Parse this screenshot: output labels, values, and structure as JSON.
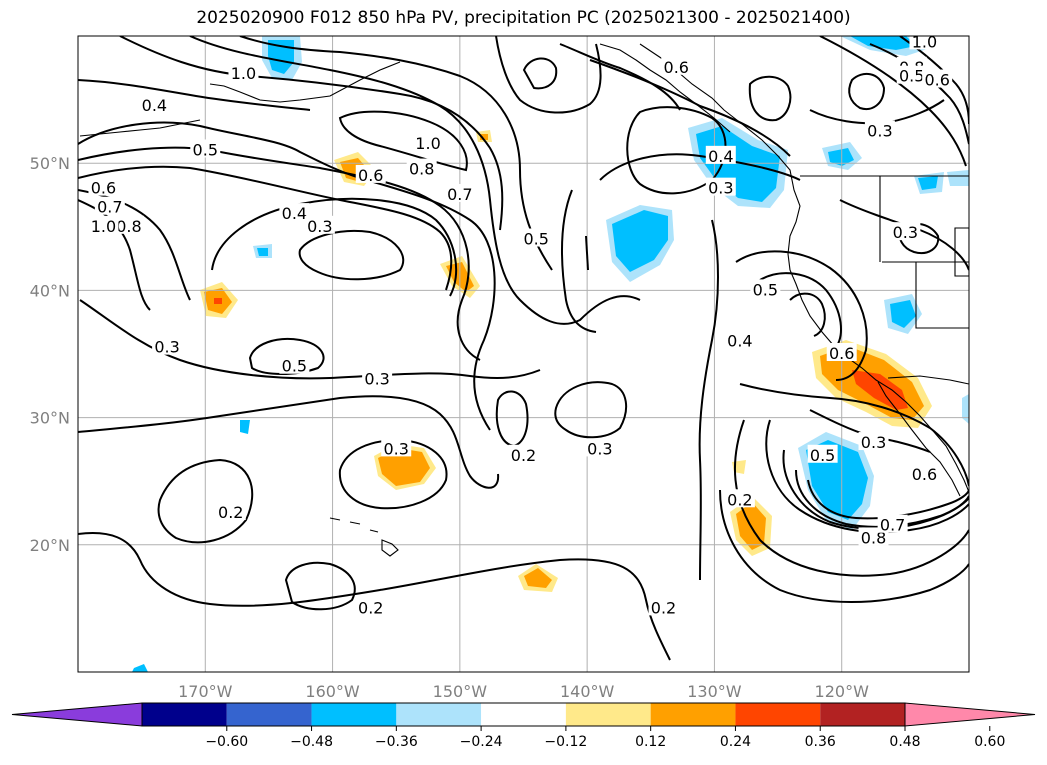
{
  "title": "2025020900 F012 850 hPa PV, precipitation PC (2025021300 - 2025021400)",
  "map": {
    "lon_range": [
      -180,
      -110
    ],
    "lat_range": [
      10,
      60
    ],
    "lon_ticks": [
      {
        "lon": -170,
        "label": "170°W"
      },
      {
        "lon": -160,
        "label": "160°W"
      },
      {
        "lon": -150,
        "label": "150°W"
      },
      {
        "lon": -140,
        "label": "140°W"
      },
      {
        "lon": -130,
        "label": "130°W"
      },
      {
        "lon": -120,
        "label": "120°W"
      }
    ],
    "lat_ticks": [
      {
        "lat": 20,
        "label": "20°N"
      },
      {
        "lat": 30,
        "label": "30°N"
      },
      {
        "lat": 40,
        "label": "40°N"
      },
      {
        "lat": 50,
        "label": "50°N"
      }
    ],
    "grid": true,
    "contour_labels": [
      {
        "text": "1.0",
        "lon": -167,
        "lat": 57
      },
      {
        "text": "0.4",
        "lon": -174,
        "lat": 54.5
      },
      {
        "text": "0.5",
        "lon": -170,
        "lat": 51
      },
      {
        "text": "0.6",
        "lon": -178,
        "lat": 48
      },
      {
        "text": "0.7",
        "lon": -177.5,
        "lat": 46.5
      },
      {
        "text": "0.8",
        "lon": -176,
        "lat": 45
      },
      {
        "text": "1.0",
        "lon": -178,
        "lat": 45
      },
      {
        "text": "0.6",
        "lon": -157,
        "lat": 49
      },
      {
        "text": "0.8",
        "lon": -153,
        "lat": 49.5
      },
      {
        "text": "1.0",
        "lon": -152.5,
        "lat": 51.5
      },
      {
        "text": "0.7",
        "lon": -150,
        "lat": 47.5
      },
      {
        "text": "0.4",
        "lon": -163,
        "lat": 46
      },
      {
        "text": "0.3",
        "lon": -161,
        "lat": 45
      },
      {
        "text": "0.5",
        "lon": -144,
        "lat": 44
      },
      {
        "text": "0.3",
        "lon": -173,
        "lat": 35.5
      },
      {
        "text": "0.5",
        "lon": -163,
        "lat": 34
      },
      {
        "text": "0.3",
        "lon": -156.5,
        "lat": 33
      },
      {
        "text": "0.3",
        "lon": -155,
        "lat": 27.5
      },
      {
        "text": "0.2",
        "lon": -145,
        "lat": 27
      },
      {
        "text": "0.3",
        "lon": -139,
        "lat": 27.5
      },
      {
        "text": "0.2",
        "lon": -168,
        "lat": 22.5
      },
      {
        "text": "0.2",
        "lon": -157,
        "lat": 15
      },
      {
        "text": "0.2",
        "lon": -134,
        "lat": 15
      },
      {
        "text": "0.6",
        "lon": -133,
        "lat": 57.5
      },
      {
        "text": "0.4",
        "lon": -129.5,
        "lat": 50.5
      },
      {
        "text": "0.3",
        "lon": -129.5,
        "lat": 48
      },
      {
        "text": "0.8",
        "lon": -114.5,
        "lat": 57.5
      },
      {
        "text": "1.0",
        "lon": -113.5,
        "lat": 59.5
      },
      {
        "text": "0.5",
        "lon": -114.5,
        "lat": 56.8
      },
      {
        "text": "0.6",
        "lon": -112.5,
        "lat": 56.5
      },
      {
        "text": "0.3",
        "lon": -117,
        "lat": 52.5
      },
      {
        "text": "0.3",
        "lon": -115,
        "lat": 44.5
      },
      {
        "text": "0.5",
        "lon": -126,
        "lat": 40
      },
      {
        "text": "0.4",
        "lon": -128,
        "lat": 36
      },
      {
        "text": "0.6",
        "lon": -120,
        "lat": 35
      },
      {
        "text": "0.3",
        "lon": -117.5,
        "lat": 28
      },
      {
        "text": "0.5",
        "lon": -121.5,
        "lat": 27
      },
      {
        "text": "0.6",
        "lon": -113.5,
        "lat": 25.5
      },
      {
        "text": "0.2",
        "lon": -128,
        "lat": 23.5
      },
      {
        "text": "0.8",
        "lon": -117.5,
        "lat": 20.5
      },
      {
        "text": "0.7",
        "lon": -116,
        "lat": 21.5
      }
    ]
  },
  "colorbar": {
    "colors": [
      "#8a3cdc",
      "#00008c",
      "#3564cf",
      "#00bfff",
      "#ade3fb",
      "#ffffff",
      "#ffe98a",
      "#ffa000",
      "#ff4500",
      "#b22222",
      "#ff88aa"
    ],
    "labels": [
      "−0.60",
      "−0.48",
      "−0.36",
      "−0.24",
      "−0.12",
      "0.12",
      "0.24",
      "0.36",
      "0.48",
      "0.60"
    ]
  }
}
